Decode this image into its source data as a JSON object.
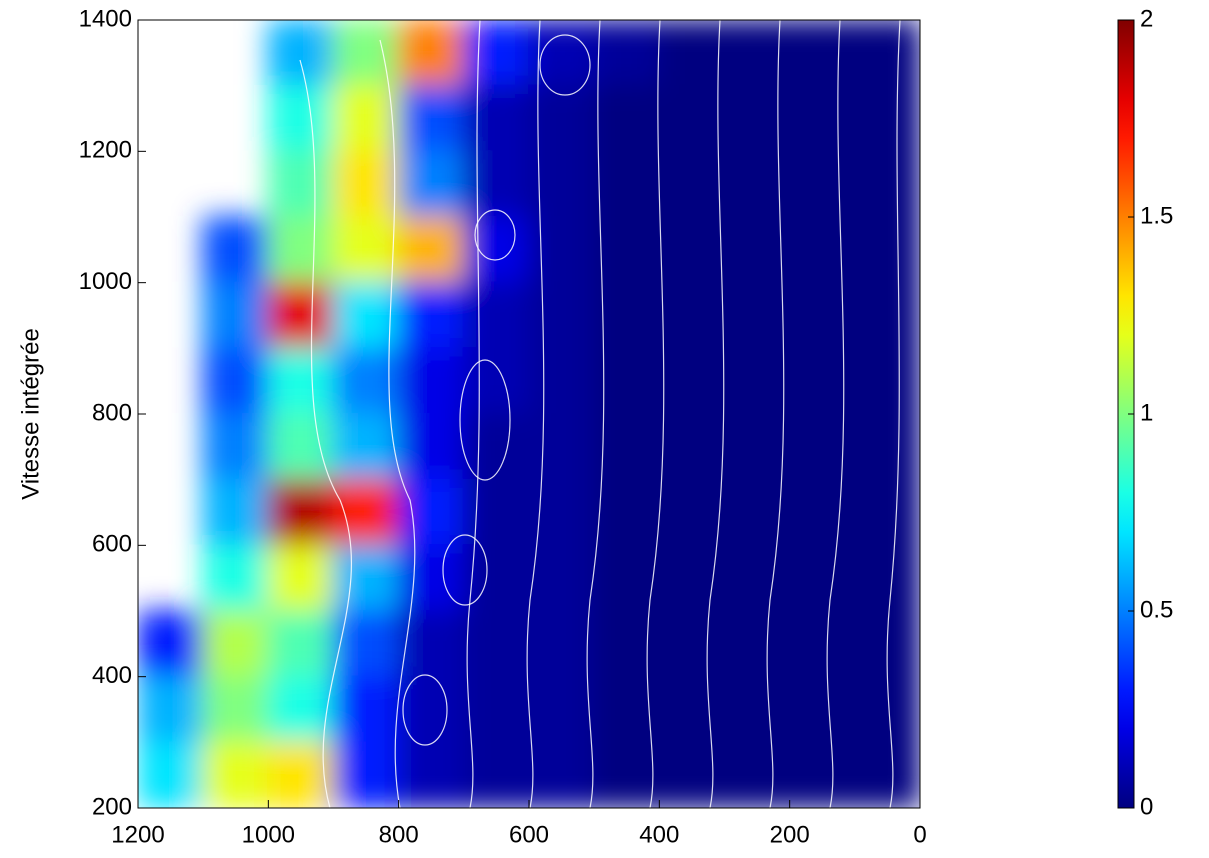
{
  "chart_data": {
    "type": "heatmap",
    "ylabel": "Vitesse intégrée",
    "x": [
      1150,
      1050,
      950,
      850,
      750,
      650,
      550,
      450,
      350,
      250,
      150,
      50
    ],
    "y": [
      1350,
      1250,
      1150,
      1050,
      950,
      850,
      750,
      650,
      550,
      450,
      350,
      250
    ],
    "values": [
      [
        null,
        null,
        0.6,
        1.0,
        1.5,
        0.3,
        0.1,
        0.05,
        0,
        0,
        0,
        0
      ],
      [
        null,
        null,
        0.8,
        1.2,
        0.4,
        0.1,
        0.05,
        0,
        0,
        0,
        0,
        0
      ],
      [
        null,
        null,
        0.9,
        1.3,
        0.5,
        0.1,
        0.05,
        0,
        0,
        0,
        0,
        0
      ],
      [
        null,
        0.4,
        1.0,
        1.2,
        1.4,
        0.2,
        0.05,
        0,
        0,
        0,
        0,
        0
      ],
      [
        null,
        0.5,
        1.8,
        0.7,
        0.3,
        0.1,
        0.05,
        0,
        0,
        0,
        0,
        0
      ],
      [
        null,
        0.4,
        0.8,
        0.5,
        0.2,
        0.1,
        0.05,
        0,
        0,
        0,
        0,
        0
      ],
      [
        null,
        0.5,
        0.9,
        0.6,
        0.2,
        0.05,
        0.05,
        0,
        0,
        0,
        0,
        0
      ],
      [
        null,
        0.6,
        1.9,
        1.7,
        0.3,
        0.05,
        0.05,
        0,
        0,
        0,
        0,
        0
      ],
      [
        null,
        0.8,
        1.2,
        0.6,
        0.2,
        0.05,
        0.05,
        0,
        0,
        0,
        0,
        0
      ],
      [
        0.3,
        1.1,
        0.9,
        0.4,
        0.1,
        0.05,
        0.05,
        0,
        0,
        0,
        0,
        0
      ],
      [
        0.6,
        1.0,
        0.8,
        0.3,
        0.1,
        0.05,
        0.05,
        0,
        0,
        0,
        0,
        0
      ],
      [
        0.7,
        1.2,
        1.3,
        0.3,
        0.1,
        0.05,
        0.05,
        0,
        0,
        0,
        0,
        0
      ]
    ],
    "xlim": [
      1200,
      0
    ],
    "ylim": [
      200,
      1400
    ],
    "xticks": [
      1200,
      1000,
      800,
      600,
      400,
      200,
      0
    ],
    "yticks": [
      200,
      400,
      600,
      800,
      1000,
      1200,
      1400
    ],
    "clim": [
      0,
      2
    ],
    "cticks": [
      0,
      0.5,
      1,
      1.5,
      2
    ],
    "colormap": "jet"
  }
}
